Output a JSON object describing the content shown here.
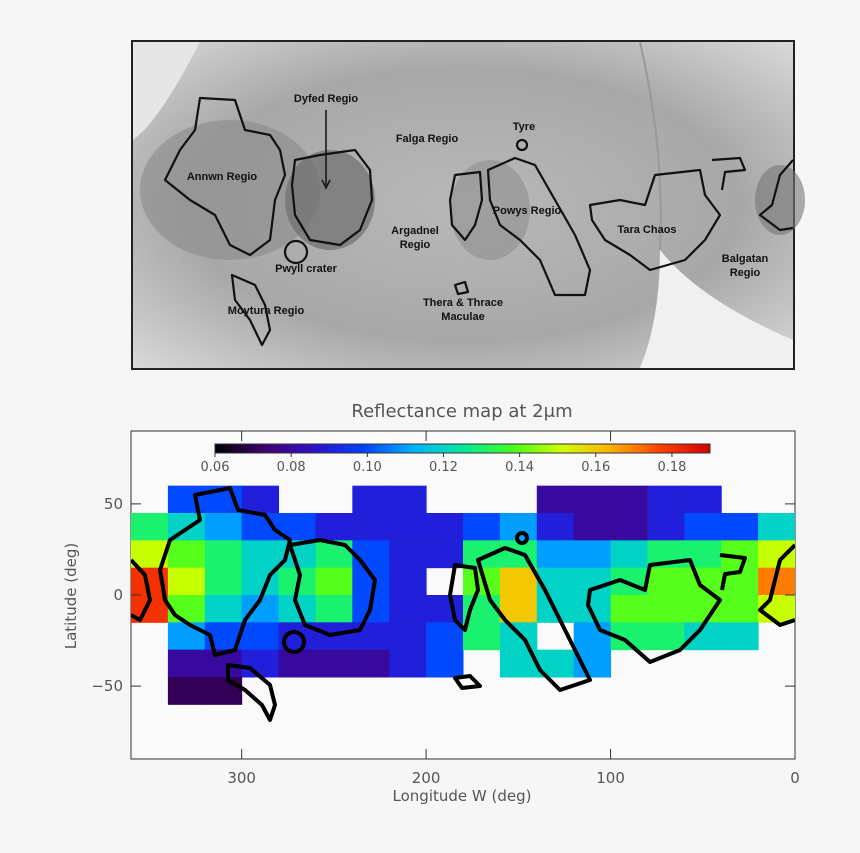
{
  "image_labels": [
    [
      "Dyfed Regio"
    ],
    [
      "Falga Regio"
    ],
    [
      "Tyre"
    ],
    [
      "Annwn Regio"
    ],
    [
      "Powys Regio"
    ],
    [
      "Tara Chaos"
    ],
    [
      "Pwyll crater"
    ],
    [
      "Moytura Regio"
    ],
    [
      "Argadnel",
      "Regio"
    ],
    [
      "Balgatan",
      "Regio"
    ],
    [
      "Thera & Thrace",
      "Maculae"
    ]
  ],
  "chart_data": {
    "type": "heatmap",
    "title": "Reflectance map at 2μm",
    "xlabel": "Longitude W (deg)",
    "ylabel": "Latitude (deg)",
    "x": [
      350,
      330,
      310,
      290,
      270,
      250,
      230,
      210,
      190,
      170,
      150,
      130,
      110,
      90,
      70,
      50,
      30,
      10
    ],
    "y": [
      52.5,
      37.5,
      22.5,
      7.5,
      -7.5,
      -22.5,
      -37.5,
      -52.5
    ],
    "values": [
      [
        null,
        0.1,
        0.1,
        0.09,
        null,
        null,
        0.09,
        0.09,
        null,
        null,
        null,
        0.08,
        0.08,
        0.08,
        0.09,
        0.09,
        null,
        null
      ],
      [
        0.13,
        0.12,
        0.11,
        0.1,
        0.1,
        0.09,
        0.09,
        0.09,
        0.09,
        0.1,
        0.11,
        0.09,
        0.08,
        0.08,
        0.09,
        0.1,
        0.1,
        0.12
      ],
      [
        0.15,
        0.14,
        0.13,
        0.12,
        0.12,
        0.13,
        0.1,
        0.09,
        0.09,
        0.13,
        0.13,
        0.11,
        0.11,
        0.12,
        0.13,
        0.13,
        0.14,
        0.15
      ],
      [
        0.18,
        0.15,
        0.13,
        0.12,
        0.13,
        0.14,
        0.1,
        0.09,
        null,
        0.14,
        0.16,
        0.12,
        0.12,
        0.13,
        0.14,
        0.14,
        0.14,
        0.17
      ],
      [
        0.18,
        0.14,
        0.12,
        0.11,
        0.12,
        0.13,
        0.1,
        0.09,
        0.09,
        0.13,
        0.16,
        0.12,
        0.12,
        0.14,
        0.14,
        0.14,
        0.14,
        0.15
      ],
      [
        null,
        0.11,
        0.1,
        0.1,
        0.09,
        0.09,
        0.09,
        0.09,
        0.1,
        0.13,
        0.12,
        null,
        0.11,
        0.13,
        0.13,
        0.12,
        0.12,
        null
      ],
      [
        null,
        0.08,
        0.08,
        0.09,
        0.08,
        0.08,
        0.08,
        0.09,
        0.1,
        null,
        0.12,
        0.12,
        0.11,
        null,
        null,
        null,
        null,
        null
      ],
      [
        null,
        0.07,
        0.07,
        null,
        null,
        null,
        null,
        null,
        null,
        null,
        null,
        null,
        null,
        null,
        null,
        null,
        null,
        null
      ]
    ],
    "xlim": [
      360,
      0
    ],
    "ylim": [
      -90,
      90
    ],
    "xticks": [
      300,
      200,
      100,
      0
    ],
    "yticks": [
      50,
      0,
      {
        "value": -50,
        "label": "−50"
      }
    ],
    "colorbar": {
      "clim": [
        0.06,
        0.19
      ],
      "ticks": [
        0.06,
        0.08,
        {
          "value": 0.1,
          "label": "0.10"
        },
        0.12,
        0.14,
        0.16,
        0.18
      ],
      "colors": [
        "#000000",
        "#400070",
        "#3010c8",
        "#0040ff",
        "#00b0ff",
        "#00e8a0",
        "#40ff20",
        "#d0ff00",
        "#ffb000",
        "#ff4000",
        "#d00000"
      ]
    }
  }
}
